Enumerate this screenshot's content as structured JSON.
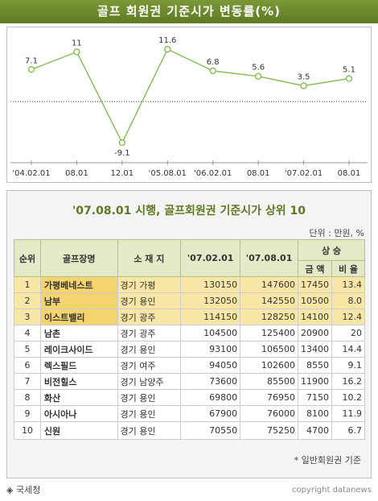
{
  "title": "골프 회원권 기준시가 변동률(%)",
  "chart_data": {
    "type": "line",
    "categories": [
      "'04.02.01",
      "08.01",
      "12.01",
      "'05.08.01",
      "'06.02.01",
      "08.01",
      "'07.02.01",
      "08.01"
    ],
    "values": [
      7.1,
      11,
      -9.1,
      11.6,
      6.8,
      5.6,
      3.5,
      5.1
    ],
    "value_labels": [
      "7.1",
      "11",
      "-9.1",
      "11.6",
      "6.8",
      "5.6",
      "3.5",
      "5.1"
    ],
    "baseline": 0,
    "ylim": [
      -13,
      15
    ],
    "grid": false,
    "line_color": "#8cbf5a"
  },
  "table": {
    "title": "'07.08.01 시행, 골프회원권 기준시가 상위 10",
    "unit": "단위 : 만원, %",
    "headers": {
      "rank": "순위",
      "name": "골프장명",
      "location": "소 재 지",
      "p1": "'07.02.01",
      "p2": "'07.08.01",
      "rise": "상 승",
      "amount": "금 액",
      "rate": "비 율"
    },
    "rows": [
      {
        "rank": "1",
        "name": "가평베네스트",
        "location": "경기 가평",
        "p1": "130150",
        "p2": "147600",
        "amount": "17450",
        "rate": "13.4"
      },
      {
        "rank": "2",
        "name": "남부",
        "location": "경기 용인",
        "p1": "132050",
        "p2": "142550",
        "amount": "10500",
        "rate": "8.0"
      },
      {
        "rank": "3",
        "name": "이스트밸리",
        "location": "경기 광주",
        "p1": "114150",
        "p2": "128250",
        "amount": "14100",
        "rate": "12.4"
      },
      {
        "rank": "4",
        "name": "남촌",
        "location": "경기 광주",
        "p1": "104500",
        "p2": "125400",
        "amount": "20900",
        "rate": "20"
      },
      {
        "rank": "5",
        "name": "레이크사이드",
        "location": "경기 용인",
        "p1": "93100",
        "p2": "106500",
        "amount": "13400",
        "rate": "14.4"
      },
      {
        "rank": "6",
        "name": "렉스필드",
        "location": "경기 여주",
        "p1": "94050",
        "p2": "102600",
        "amount": "8550",
        "rate": "9.1"
      },
      {
        "rank": "7",
        "name": "비전힐스",
        "location": "경기 남양주",
        "p1": "73600",
        "p2": "85500",
        "amount": "11900",
        "rate": "16.2"
      },
      {
        "rank": "8",
        "name": "화산",
        "location": "경기 용인",
        "p1": "69800",
        "p2": "76950",
        "amount": "7150",
        "rate": "10.2"
      },
      {
        "rank": "9",
        "name": "아시아나",
        "location": "경기 용인",
        "p1": "67900",
        "p2": "76000",
        "amount": "8100",
        "rate": "11.9"
      },
      {
        "rank": "10",
        "name": "신원",
        "location": "경기 용인",
        "p1": "70550",
        "p2": "75250",
        "amount": "4700",
        "rate": "6.7"
      }
    ],
    "footnote": "* 일반회원권 기준"
  },
  "source": "◈ 국세청",
  "copyright": "copyright datanews"
}
